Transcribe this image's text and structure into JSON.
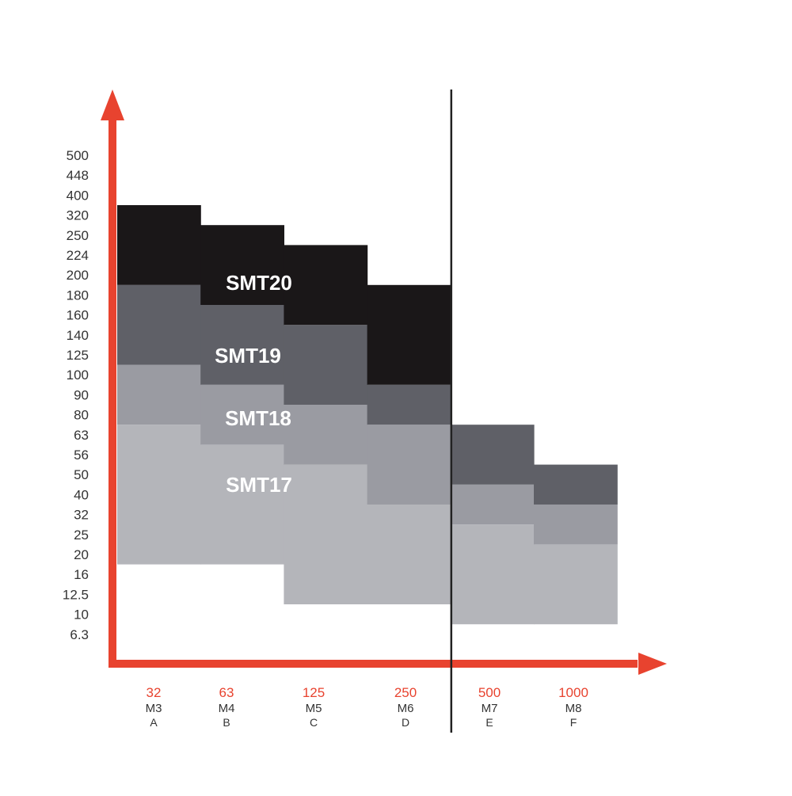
{
  "chart_data": {
    "type": "area",
    "y_ticks": [
      "500",
      "448",
      "400",
      "320",
      "250",
      "224",
      "200",
      "180",
      "160",
      "140",
      "125",
      "100",
      "90",
      "80",
      "63",
      "56",
      "50",
      "40",
      "32",
      "25",
      "20",
      "16",
      "12.5",
      "10",
      "6.3"
    ],
    "categories": [
      {
        "value": "32",
        "m": "M3",
        "letter": "A"
      },
      {
        "value": "63",
        "m": "M4",
        "letter": "B"
      },
      {
        "value": "125",
        "m": "M5",
        "letter": "C"
      },
      {
        "value": "250",
        "m": "M6",
        "letter": "D"
      },
      {
        "value": "500",
        "m": "M7",
        "letter": "E"
      },
      {
        "value": "1000",
        "m": "M8",
        "letter": "F"
      }
    ],
    "divider_after_category": 3,
    "series": [
      {
        "name": "SMT17",
        "color": "#b4b5ba",
        "label_color": "#ffffff",
        "top": [
          "63",
          "56",
          "50",
          "32",
          "25",
          "20"
        ],
        "bottom": [
          "16",
          "16",
          "10",
          "10",
          "6.3",
          "6.3"
        ]
      },
      {
        "name": "SMT18",
        "color": "#9a9ba2",
        "label_color": "#ffffff",
        "top": [
          "100",
          "90",
          "80",
          "63",
          "40",
          "32"
        ],
        "bottom": [
          "63",
          "56",
          "50",
          "32",
          "25",
          "20"
        ]
      },
      {
        "name": "SMT19",
        "color": "#5f6067",
        "label_color": "#ffffff",
        "top": [
          "180",
          "160",
          "140",
          "90",
          "63",
          "50"
        ],
        "bottom": [
          "100",
          "90",
          "80",
          "63",
          "40",
          "32"
        ]
      },
      {
        "name": "SMT20",
        "color": "#1a1718",
        "label_color": "#ffffff",
        "top": [
          "320",
          "250",
          "224",
          "180",
          null,
          null
        ],
        "bottom": [
          "180",
          "160",
          "140",
          "90",
          null,
          null
        ]
      }
    ],
    "colors": {
      "axis": "#e8432f",
      "category_value": "#e8432f",
      "text": "#333333",
      "divider": "#222222"
    }
  }
}
